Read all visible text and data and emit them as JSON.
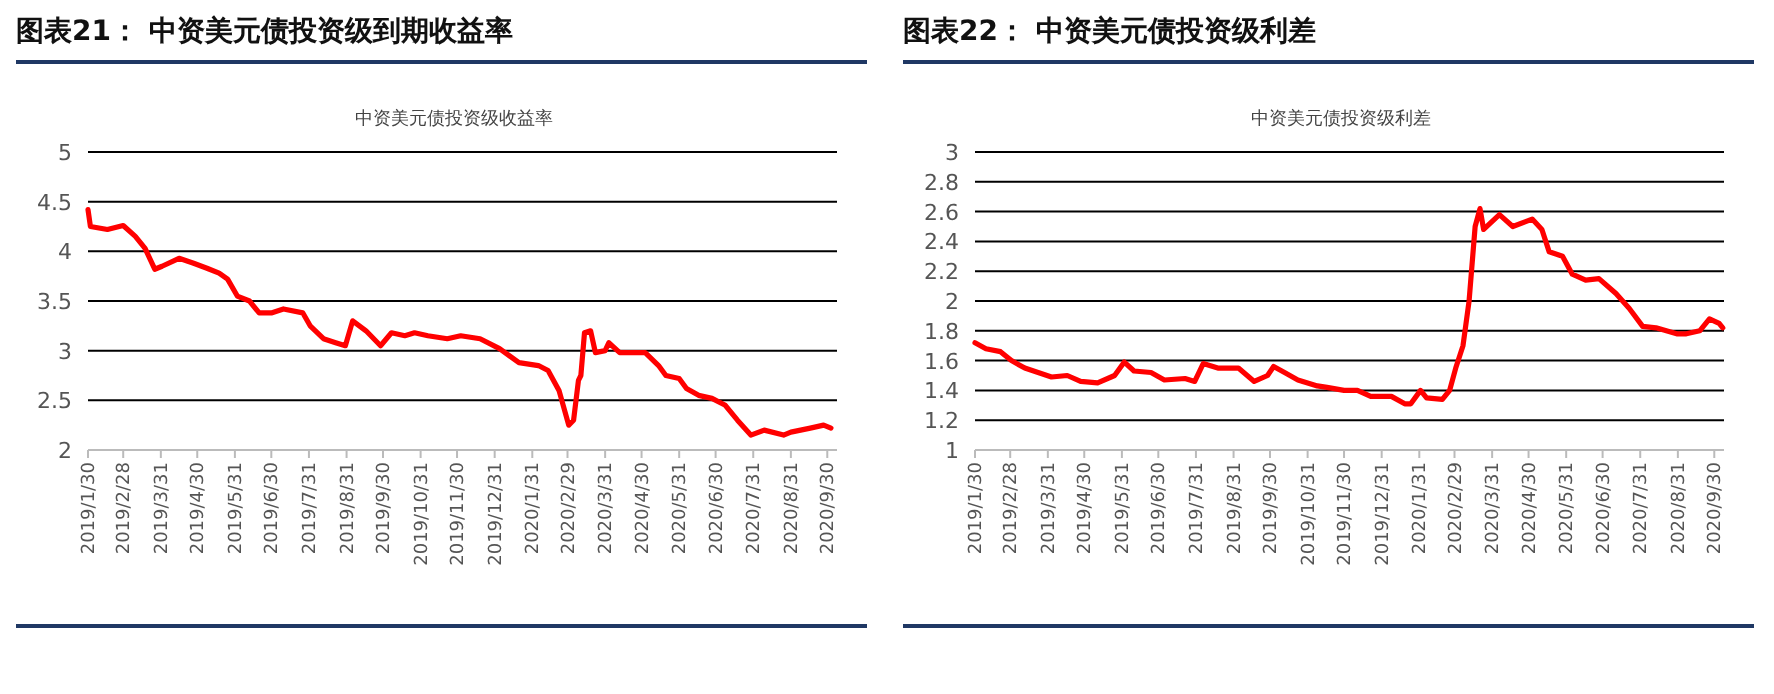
{
  "chart_data": [
    {
      "type": "line",
      "title": "图表21：  中资美元债投资级到期收益率",
      "subtitle": "中资美元债投资级收益率",
      "grid": "y",
      "line_style": "solid",
      "marker": "none",
      "xlim": [
        "2019-01-30",
        "2020-10-08"
      ],
      "ylim": [
        2,
        5
      ],
      "yticks": [
        2,
        2.5,
        3,
        3.5,
        4,
        4.5,
        5
      ],
      "xticks": [
        {
          "value": "2019-01-30",
          "label": "2019/1/30"
        },
        {
          "value": "2019-02-28",
          "label": "2019/2/28"
        },
        {
          "value": "2019-03-31",
          "label": "2019/3/31"
        },
        {
          "value": "2019-04-30",
          "label": "2019/4/30"
        },
        {
          "value": "2019-05-31",
          "label": "2019/5/31"
        },
        {
          "value": "2019-06-30",
          "label": "2019/6/30"
        },
        {
          "value": "2019-07-31",
          "label": "2019/7/31"
        },
        {
          "value": "2019-08-31",
          "label": "2019/8/31"
        },
        {
          "value": "2019-09-30",
          "label": "2019/9/30"
        },
        {
          "value": "2019-10-31",
          "label": "2019/10/31"
        },
        {
          "value": "2019-11-30",
          "label": "2019/11/30"
        },
        {
          "value": "2019-12-31",
          "label": "2019/12/31"
        },
        {
          "value": "2020-01-31",
          "label": "2020/1/31"
        },
        {
          "value": "2020-02-29",
          "label": "2020/2/29"
        },
        {
          "value": "2020-03-31",
          "label": "2020/3/31"
        },
        {
          "value": "2020-04-30",
          "label": "2020/4/30"
        },
        {
          "value": "2020-05-31",
          "label": "2020/5/31"
        },
        {
          "value": "2020-06-30",
          "label": "2020/6/30"
        },
        {
          "value": "2020-07-31",
          "label": "2020/7/31"
        },
        {
          "value": "2020-08-31",
          "label": "2020/8/31"
        },
        {
          "value": "2020-09-30",
          "label": "2020/9/30"
        }
      ],
      "series": [
        {
          "color": "#ff0000",
          "x": [
            "2019-01-30",
            "2019-02-01",
            "2019-02-15",
            "2019-02-28",
            "2019-03-10",
            "2019-03-18",
            "2019-03-26",
            "2019-04-01",
            "2019-04-15",
            "2019-04-27",
            "2019-05-08",
            "2019-05-18",
            "2019-05-25",
            "2019-06-02",
            "2019-06-12",
            "2019-06-20",
            "2019-06-30",
            "2019-07-10",
            "2019-07-26",
            "2019-08-01",
            "2019-08-12",
            "2019-08-22",
            "2019-08-30",
            "2019-09-05",
            "2019-09-16",
            "2019-09-28",
            "2019-10-07",
            "2019-10-18",
            "2019-10-26",
            "2019-11-06",
            "2019-11-22",
            "2019-12-03",
            "2019-12-19",
            "2020-01-04",
            "2020-01-20",
            "2020-02-05",
            "2020-02-13",
            "2020-02-22",
            "2020-03-01",
            "2020-03-05",
            "2020-03-09",
            "2020-03-11",
            "2020-03-14",
            "2020-03-19",
            "2020-03-23",
            "2020-03-31",
            "2020-04-03",
            "2020-04-12",
            "2020-04-23",
            "2020-05-03",
            "2020-05-14",
            "2020-05-20",
            "2020-05-31",
            "2020-06-06",
            "2020-06-16",
            "2020-06-27",
            "2020-07-08",
            "2020-07-18",
            "2020-07-29",
            "2020-08-09",
            "2020-08-25",
            "2020-08-31",
            "2020-09-16",
            "2020-09-27",
            "2020-10-03"
          ],
          "values": [
            4.42,
            4.25,
            4.22,
            4.26,
            4.15,
            4.03,
            3.82,
            3.85,
            3.93,
            3.88,
            3.83,
            3.78,
            3.72,
            3.55,
            3.5,
            3.38,
            3.38,
            3.42,
            3.38,
            3.25,
            3.12,
            3.08,
            3.05,
            3.3,
            3.2,
            3.05,
            3.18,
            3.15,
            3.18,
            3.15,
            3.12,
            3.15,
            3.12,
            3.02,
            2.88,
            2.85,
            2.8,
            2.6,
            2.25,
            2.3,
            2.7,
            2.75,
            3.18,
            3.2,
            2.98,
            3.0,
            3.08,
            2.98,
            2.98,
            2.98,
            2.85,
            2.75,
            2.72,
            2.62,
            2.55,
            2.52,
            2.45,
            2.3,
            2.15,
            2.2,
            2.15,
            2.18,
            2.22,
            2.25,
            2.22
          ]
        }
      ]
    },
    {
      "type": "line",
      "title": "图表22：  中资美元债投资级利差",
      "subtitle": "中资美元债投资级利差",
      "grid": "y",
      "line_style": "solid",
      "marker": "none",
      "xlim": [
        "2019-01-30",
        "2020-10-08"
      ],
      "ylim": [
        1,
        3
      ],
      "yticks": [
        1,
        1.2,
        1.4,
        1.6,
        1.8,
        2,
        2.2,
        2.4,
        2.6,
        2.8,
        3
      ],
      "xticks": [
        {
          "value": "2019-01-30",
          "label": "2019/1/30"
        },
        {
          "value": "2019-02-28",
          "label": "2019/2/28"
        },
        {
          "value": "2019-03-31",
          "label": "2019/3/31"
        },
        {
          "value": "2019-04-30",
          "label": "2019/4/30"
        },
        {
          "value": "2019-05-31",
          "label": "2019/5/31"
        },
        {
          "value": "2019-06-30",
          "label": "2019/6/30"
        },
        {
          "value": "2019-07-31",
          "label": "2019/7/31"
        },
        {
          "value": "2019-08-31",
          "label": "2019/8/31"
        },
        {
          "value": "2019-09-30",
          "label": "2019/9/30"
        },
        {
          "value": "2019-10-31",
          "label": "2019/10/31"
        },
        {
          "value": "2019-11-30",
          "label": "2019/11/30"
        },
        {
          "value": "2019-12-31",
          "label": "2019/12/31"
        },
        {
          "value": "2020-01-31",
          "label": "2020/1/31"
        },
        {
          "value": "2020-02-29",
          "label": "2020/2/29"
        },
        {
          "value": "2020-03-31",
          "label": "2020/3/31"
        },
        {
          "value": "2020-04-30",
          "label": "2020/4/30"
        },
        {
          "value": "2020-05-31",
          "label": "2020/5/31"
        },
        {
          "value": "2020-06-30",
          "label": "2020/6/30"
        },
        {
          "value": "2020-07-31",
          "label": "2020/7/31"
        },
        {
          "value": "2020-08-31",
          "label": "2020/8/31"
        },
        {
          "value": "2020-09-30",
          "label": "2020/9/30"
        }
      ],
      "series": [
        {
          "color": "#ff0000",
          "x": [
            "2019-01-30",
            "2019-02-08",
            "2019-02-20",
            "2019-03-01",
            "2019-03-12",
            "2019-03-23",
            "2019-04-03",
            "2019-04-16",
            "2019-04-27",
            "2019-05-11",
            "2019-05-25",
            "2019-06-02",
            "2019-06-10",
            "2019-06-24",
            "2019-07-05",
            "2019-07-22",
            "2019-07-30",
            "2019-08-06",
            "2019-08-18",
            "2019-09-04",
            "2019-09-17",
            "2019-09-28",
            "2019-10-03",
            "2019-10-12",
            "2019-10-23",
            "2019-11-08",
            "2019-11-16",
            "2019-11-30",
            "2019-12-11",
            "2019-12-22",
            "2020-01-08",
            "2020-01-19",
            "2020-01-24",
            "2020-02-01",
            "2020-02-06",
            "2020-02-19",
            "2020-02-25",
            "2020-03-01",
            "2020-03-07",
            "2020-03-12",
            "2020-03-17",
            "2020-03-21",
            "2020-03-24",
            "2020-04-06",
            "2020-04-17",
            "2020-05-03",
            "2020-05-11",
            "2020-05-17",
            "2020-05-28",
            "2020-06-05",
            "2020-06-16",
            "2020-06-27",
            "2020-07-11",
            "2020-07-22",
            "2020-08-02",
            "2020-08-13",
            "2020-08-30",
            "2020-09-07",
            "2020-09-18",
            "2020-09-26",
            "2020-10-04",
            "2020-10-07"
          ],
          "values": [
            1.72,
            1.68,
            1.66,
            1.6,
            1.55,
            1.52,
            1.49,
            1.5,
            1.46,
            1.45,
            1.5,
            1.59,
            1.53,
            1.52,
            1.47,
            1.48,
            1.46,
            1.58,
            1.55,
            1.55,
            1.46,
            1.5,
            1.56,
            1.52,
            1.47,
            1.43,
            1.42,
            1.4,
            1.4,
            1.36,
            1.36,
            1.31,
            1.31,
            1.4,
            1.35,
            1.34,
            1.4,
            1.55,
            1.7,
            2.0,
            2.5,
            2.62,
            2.48,
            2.58,
            2.5,
            2.55,
            2.48,
            2.33,
            2.3,
            2.18,
            2.14,
            2.15,
            2.05,
            1.95,
            1.83,
            1.82,
            1.78,
            1.78,
            1.8,
            1.88,
            1.85,
            1.82
          ]
        }
      ]
    }
  ]
}
